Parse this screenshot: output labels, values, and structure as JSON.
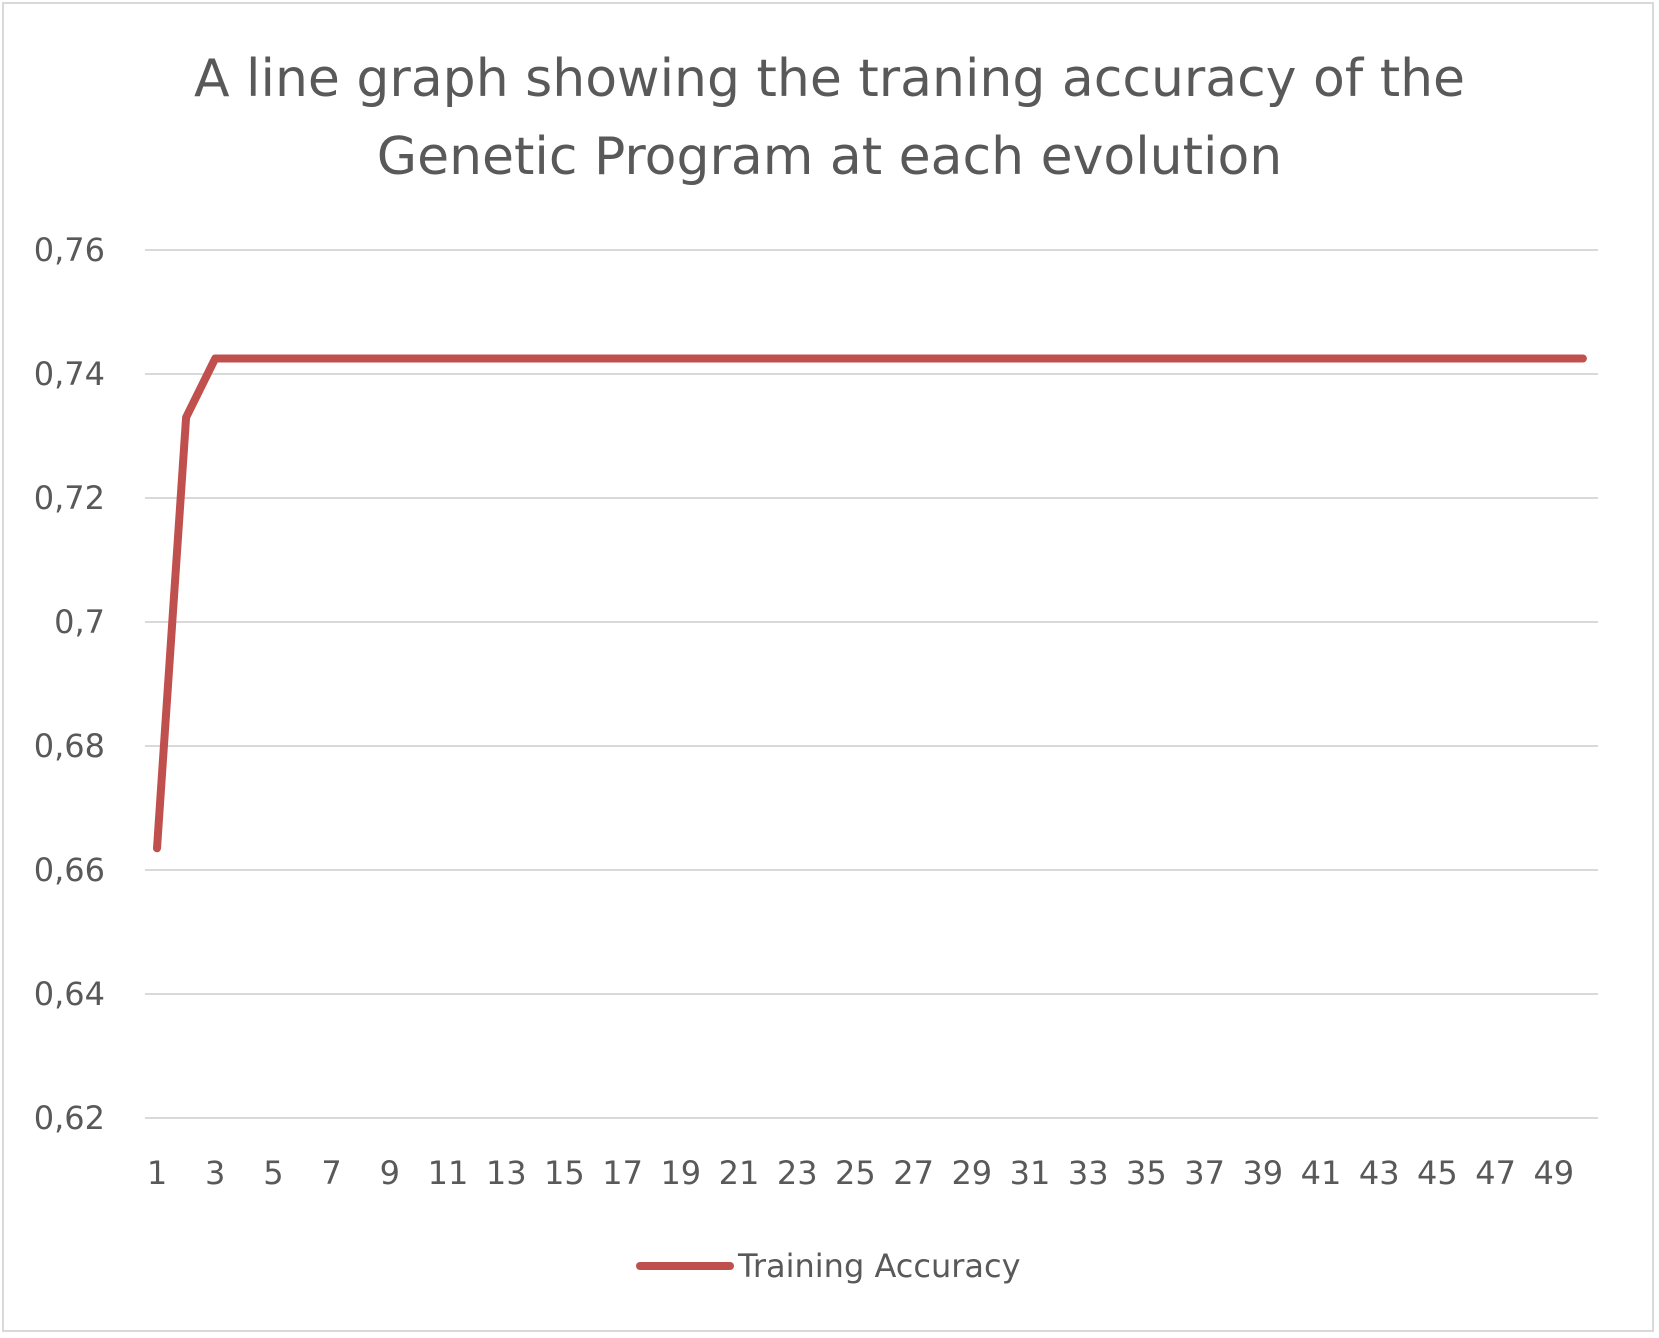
{
  "chart_data": {
    "type": "line",
    "title_lines": [
      "A line graph showing the traning accuracy of the",
      "Genetic Program at each evolution"
    ],
    "xlabel": "",
    "ylabel": "",
    "x": [
      1,
      2,
      3,
      4,
      5,
      6,
      7,
      8,
      9,
      10,
      11,
      12,
      13,
      14,
      15,
      16,
      17,
      18,
      19,
      20,
      21,
      22,
      23,
      24,
      25,
      26,
      27,
      28,
      29,
      30,
      31,
      32,
      33,
      34,
      35,
      36,
      37,
      38,
      39,
      40,
      41,
      42,
      43,
      44,
      45,
      46,
      47,
      48,
      49,
      50
    ],
    "x_tick_labels": [
      "1",
      "3",
      "5",
      "7",
      "9",
      "11",
      "13",
      "15",
      "17",
      "19",
      "21",
      "23",
      "25",
      "27",
      "29",
      "31",
      "33",
      "35",
      "37",
      "39",
      "41",
      "43",
      "45",
      "47",
      "49"
    ],
    "y_tick_labels": [
      "0,76",
      "0,74",
      "0,72",
      "0,7",
      "0,68",
      "0,66",
      "0,64",
      "0,62"
    ],
    "y_ticks": [
      0.76,
      0.74,
      0.72,
      0.7,
      0.68,
      0.66,
      0.64,
      0.62
    ],
    "ylim": [
      0.62,
      0.76
    ],
    "grid": true,
    "legend_position": "bottom",
    "series": [
      {
        "name": "Training Accuracy",
        "color": "#c0504d",
        "values": [
          0.6635,
          0.733,
          0.7425,
          0.7425,
          0.7425,
          0.7425,
          0.7425,
          0.7425,
          0.7425,
          0.7425,
          0.7425,
          0.7425,
          0.7425,
          0.7425,
          0.7425,
          0.7425,
          0.7425,
          0.7425,
          0.7425,
          0.7425,
          0.7425,
          0.7425,
          0.7425,
          0.7425,
          0.7425,
          0.7425,
          0.7425,
          0.7425,
          0.7425,
          0.7425,
          0.7425,
          0.7425,
          0.7425,
          0.7425,
          0.7425,
          0.7425,
          0.7425,
          0.7425,
          0.7425,
          0.7425,
          0.7425,
          0.7425,
          0.7425,
          0.7425,
          0.7425,
          0.7425,
          0.7425,
          0.7425,
          0.7425,
          0.7425
        ]
      }
    ]
  }
}
